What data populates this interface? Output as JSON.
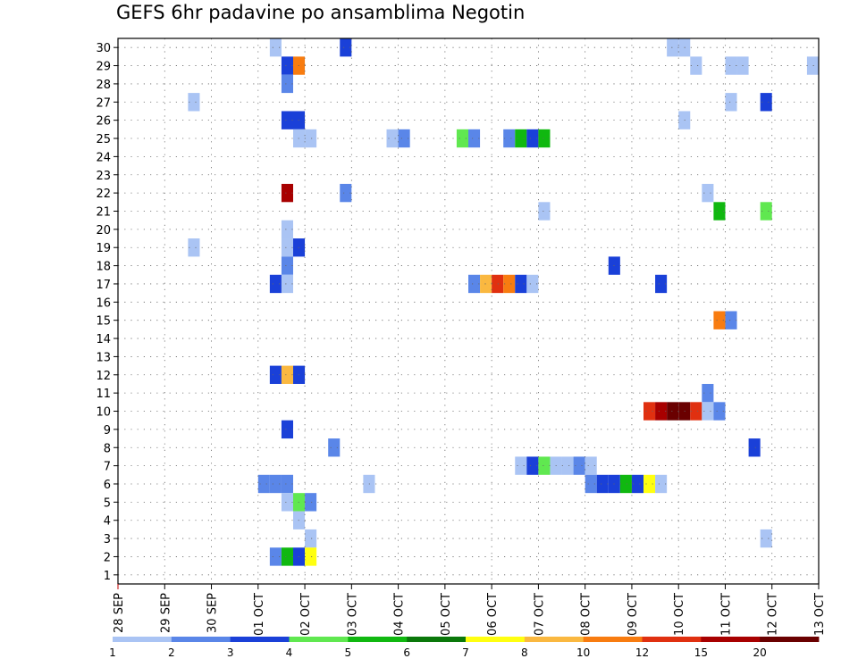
{
  "chart_data": {
    "type": "heatmap",
    "title": "GEFS 6hr padavine po ansamblima Negotin",
    "x_tick_labels": [
      "28 SEP",
      "29 SEP",
      "30 SEP",
      "01 OCT",
      "02 OCT",
      "03 OCT",
      "04 OCT",
      "05 OCT",
      "06 OCT",
      "07 OCT",
      "08 OCT",
      "09 OCT",
      "10 OCT",
      "11 OCT",
      "12 OCT",
      "13 OCT"
    ],
    "xlim": [
      0,
      60
    ],
    "y_ticks": [
      1,
      2,
      3,
      4,
      5,
      6,
      7,
      8,
      9,
      10,
      11,
      12,
      13,
      14,
      15,
      16,
      17,
      18,
      19,
      20,
      21,
      22,
      23,
      24,
      25,
      26,
      27,
      28,
      29,
      30
    ],
    "ylim": [
      0.5,
      30.5
    ],
    "grid": true,
    "colorbar": {
      "position": "bottom",
      "labels": [
        "1",
        "2",
        "3",
        "4",
        "5",
        "6",
        "7",
        "8",
        "10",
        "12",
        "15",
        "20"
      ],
      "colors": [
        "#aac4f4",
        "#5a86e8",
        "#1a40d8",
        "#60e850",
        "#10b810",
        "#0a780a",
        "#ffff10",
        "#fab840",
        "#f87c10",
        "#e03010",
        "#a80000",
        "#6a0000"
      ]
    },
    "cells": [
      {
        "x": 13.5,
        "y": 30,
        "v": 1
      },
      {
        "x": 19.5,
        "y": 30,
        "v": 3
      },
      {
        "x": 47.5,
        "y": 30,
        "v": 1
      },
      {
        "x": 48.5,
        "y": 30,
        "v": 1
      },
      {
        "x": 14.5,
        "y": 29,
        "v": 3
      },
      {
        "x": 15.5,
        "y": 29,
        "v": 10
      },
      {
        "x": 49.5,
        "y": 29,
        "v": 1
      },
      {
        "x": 52.5,
        "y": 29,
        "v": 1
      },
      {
        "x": 53.5,
        "y": 29,
        "v": 1
      },
      {
        "x": 59.5,
        "y": 29,
        "v": 1
      },
      {
        "x": 14.5,
        "y": 28,
        "v": 2
      },
      {
        "x": 6.5,
        "y": 27,
        "v": 1
      },
      {
        "x": 52.5,
        "y": 27,
        "v": 1
      },
      {
        "x": 55.5,
        "y": 27,
        "v": 3
      },
      {
        "x": 14.5,
        "y": 26,
        "v": 3
      },
      {
        "x": 15.5,
        "y": 26,
        "v": 3
      },
      {
        "x": 48.5,
        "y": 26,
        "v": 1
      },
      {
        "x": 15.5,
        "y": 25,
        "v": 1
      },
      {
        "x": 16.5,
        "y": 25,
        "v": 1
      },
      {
        "x": 23.5,
        "y": 25,
        "v": 1
      },
      {
        "x": 24.5,
        "y": 25,
        "v": 2
      },
      {
        "x": 29.5,
        "y": 25,
        "v": 4
      },
      {
        "x": 30.5,
        "y": 25,
        "v": 2
      },
      {
        "x": 33.5,
        "y": 25,
        "v": 2
      },
      {
        "x": 34.5,
        "y": 25,
        "v": 5
      },
      {
        "x": 35.5,
        "y": 25,
        "v": 3
      },
      {
        "x": 36.5,
        "y": 25,
        "v": 5
      },
      {
        "x": 14.5,
        "y": 22,
        "v": 15
      },
      {
        "x": 19.5,
        "y": 22,
        "v": 2
      },
      {
        "x": 50.5,
        "y": 22,
        "v": 1
      },
      {
        "x": 36.5,
        "y": 21,
        "v": 1
      },
      {
        "x": 51.5,
        "y": 21,
        "v": 5
      },
      {
        "x": 55.5,
        "y": 21,
        "v": 4
      },
      {
        "x": 14.5,
        "y": 20,
        "v": 1
      },
      {
        "x": 6.5,
        "y": 19,
        "v": 1
      },
      {
        "x": 14.5,
        "y": 19,
        "v": 1
      },
      {
        "x": 15.5,
        "y": 19,
        "v": 3
      },
      {
        "x": 14.5,
        "y": 18,
        "v": 2
      },
      {
        "x": 42.5,
        "y": 18,
        "v": 3
      },
      {
        "x": 13.5,
        "y": 17,
        "v": 3
      },
      {
        "x": 14.5,
        "y": 17,
        "v": 1
      },
      {
        "x": 30.5,
        "y": 17,
        "v": 2
      },
      {
        "x": 31.5,
        "y": 17,
        "v": 8
      },
      {
        "x": 32.5,
        "y": 17,
        "v": 12
      },
      {
        "x": 33.5,
        "y": 17,
        "v": 10
      },
      {
        "x": 34.5,
        "y": 17,
        "v": 3
      },
      {
        "x": 35.5,
        "y": 17,
        "v": 1
      },
      {
        "x": 46.5,
        "y": 17,
        "v": 3
      },
      {
        "x": 51.5,
        "y": 15,
        "v": 10
      },
      {
        "x": 52.5,
        "y": 15,
        "v": 2
      },
      {
        "x": 13.5,
        "y": 12,
        "v": 3
      },
      {
        "x": 14.5,
        "y": 12,
        "v": 8
      },
      {
        "x": 15.5,
        "y": 12,
        "v": 3
      },
      {
        "x": 50.5,
        "y": 11,
        "v": 2
      },
      {
        "x": 45.5,
        "y": 10,
        "v": 12
      },
      {
        "x": 46.5,
        "y": 10,
        "v": 15
      },
      {
        "x": 47.5,
        "y": 10,
        "v": 20
      },
      {
        "x": 48.5,
        "y": 10,
        "v": 20
      },
      {
        "x": 49.5,
        "y": 10,
        "v": 12
      },
      {
        "x": 50.5,
        "y": 10,
        "v": 1
      },
      {
        "x": 51.5,
        "y": 10,
        "v": 2
      },
      {
        "x": 14.5,
        "y": 9,
        "v": 3
      },
      {
        "x": 18.5,
        "y": 8,
        "v": 2
      },
      {
        "x": 54.5,
        "y": 8,
        "v": 3
      },
      {
        "x": 34.5,
        "y": 7,
        "v": 1
      },
      {
        "x": 35.5,
        "y": 7,
        "v": 3
      },
      {
        "x": 36.5,
        "y": 7,
        "v": 4
      },
      {
        "x": 37.5,
        "y": 7,
        "v": 1
      },
      {
        "x": 38.5,
        "y": 7,
        "v": 1
      },
      {
        "x": 39.5,
        "y": 7,
        "v": 2
      },
      {
        "x": 40.5,
        "y": 7,
        "v": 1
      },
      {
        "x": 12.5,
        "y": 6,
        "v": 2
      },
      {
        "x": 13.5,
        "y": 6,
        "v": 2
      },
      {
        "x": 14.5,
        "y": 6,
        "v": 2
      },
      {
        "x": 21.5,
        "y": 6,
        "v": 1
      },
      {
        "x": 40.5,
        "y": 6,
        "v": 2
      },
      {
        "x": 41.5,
        "y": 6,
        "v": 3
      },
      {
        "x": 42.5,
        "y": 6,
        "v": 3
      },
      {
        "x": 43.5,
        "y": 6,
        "v": 5
      },
      {
        "x": 44.5,
        "y": 6,
        "v": 3
      },
      {
        "x": 45.5,
        "y": 6,
        "v": 7
      },
      {
        "x": 46.5,
        "y": 6,
        "v": 1
      },
      {
        "x": 14.5,
        "y": 5,
        "v": 1
      },
      {
        "x": 15.5,
        "y": 5,
        "v": 4
      },
      {
        "x": 16.5,
        "y": 5,
        "v": 2
      },
      {
        "x": 15.5,
        "y": 4,
        "v": 1
      },
      {
        "x": 16.5,
        "y": 3,
        "v": 1
      },
      {
        "x": 55.5,
        "y": 3,
        "v": 1
      },
      {
        "x": 13.5,
        "y": 2,
        "v": 2
      },
      {
        "x": 14.5,
        "y": 2,
        "v": 5
      },
      {
        "x": 15.5,
        "y": 2,
        "v": 3
      },
      {
        "x": 16.5,
        "y": 2,
        "v": 7
      }
    ]
  }
}
